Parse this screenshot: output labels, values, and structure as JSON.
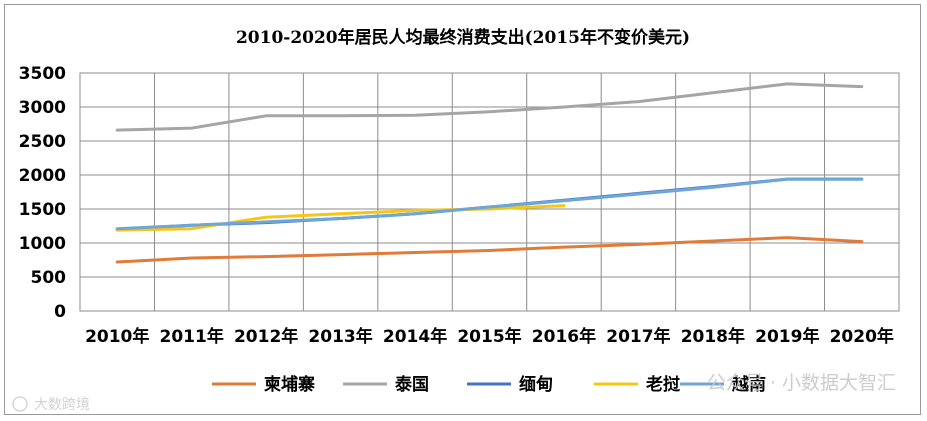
{
  "chart_data": {
    "type": "line",
    "title": "2010-2020年居民人均最终消费支出(2015年不变价美元)",
    "categories": [
      "2010年",
      "2011年",
      "2012年",
      "2013年",
      "2014年",
      "2015年",
      "2016年",
      "2017年",
      "2018年",
      "2019年",
      "2020年"
    ],
    "ylim": [
      0,
      3500
    ],
    "yticks": [
      0,
      500,
      1000,
      1500,
      2000,
      2500,
      3000,
      3500
    ],
    "grid": true,
    "legend_position": "bottom",
    "series": [
      {
        "name": "柬埔寨",
        "color": "#e07b39",
        "values": [
          720,
          780,
          800,
          830,
          860,
          890,
          940,
          980,
          1030,
          1080,
          1020
        ]
      },
      {
        "name": "泰国",
        "color": "#a5a5a5",
        "values": [
          2660,
          2690,
          2870,
          2870,
          2880,
          2930,
          3000,
          3080,
          3210,
          3340,
          3300
        ]
      },
      {
        "name": "缅甸",
        "color": "#4472c4",
        "values": [
          1200,
          1260,
          1300,
          1360,
          1430,
          1530,
          1630,
          1730,
          1830,
          1940,
          1940
        ]
      },
      {
        "name": "老挝",
        "color": "#f5c518",
        "values": [
          1190,
          1210,
          1380,
          1430,
          1480,
          1500,
          1550,
          null,
          null,
          null,
          null
        ]
      },
      {
        "name": "越南",
        "color": "#6ea6d6",
        "values": [
          1210,
          1260,
          1310,
          1360,
          1430,
          1530,
          1620,
          1720,
          1820,
          1940,
          1940
        ]
      }
    ]
  },
  "watermark": {
    "right": "公众号 · 小数据大智汇",
    "left": "大数跨境"
  }
}
